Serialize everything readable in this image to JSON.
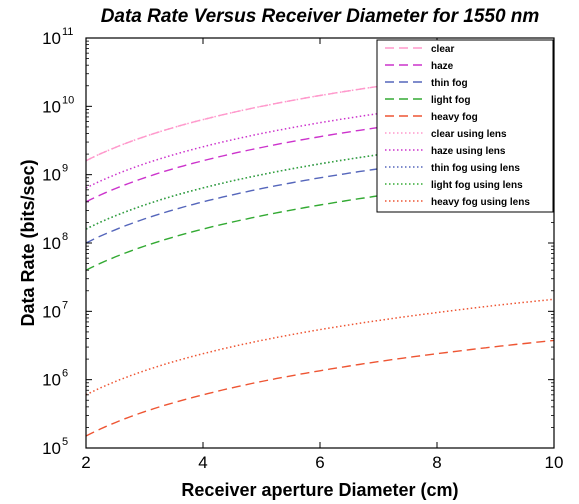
{
  "chart_data": {
    "type": "line",
    "title": "Data Rate Versus Receiver Diameter for 1550 nm",
    "xlabel": "Receiver aperture Diameter (cm)",
    "ylabel": "Data Rate (bits/sec)",
    "xlim": [
      2,
      10
    ],
    "ylim": [
      100000,
      100000000000
    ],
    "yscale": "log",
    "x_ticks": [
      "2",
      "4",
      "6",
      "8",
      "10"
    ],
    "y_ticks": [
      {
        "base": "10",
        "exp": "5",
        "value": 100000
      },
      {
        "base": "10",
        "exp": "6",
        "value": 1000000
      },
      {
        "base": "10",
        "exp": "7",
        "value": 10000000
      },
      {
        "base": "10",
        "exp": "8",
        "value": 100000000
      },
      {
        "base": "10",
        "exp": "9",
        "value": 1000000000
      },
      {
        "base": "10",
        "exp": "10",
        "value": 10000000000
      },
      {
        "base": "10",
        "exp": "11",
        "value": 100000000000
      }
    ],
    "legend_position": "top-right",
    "x": [
      2,
      3,
      4,
      5,
      6,
      7,
      8,
      9,
      10
    ],
    "series": [
      {
        "name": "clear",
        "color": "#ff99cc",
        "dash": "dashed",
        "values": [
          1600000000.0,
          3600000000.0,
          6400000000.0,
          10000000000.0,
          14400000000.0,
          19600000000.0,
          25600000000.0,
          32400000000.0,
          40000000000.0
        ]
      },
      {
        "name": "haze",
        "color": "#cc33cc",
        "dash": "dashed",
        "values": [
          400000000.0,
          900000000.0,
          1600000000.0,
          2500000000.0,
          3600000000.0,
          4900000000.0,
          6400000000.0,
          8100000000.0,
          10000000000.0
        ]
      },
      {
        "name": "thin fog",
        "color": "#5566bb",
        "dash": "dashed",
        "values": [
          100000000.0,
          225000000.0,
          400000000.0,
          625000000.0,
          900000000.0,
          1220000000.0,
          1600000000.0,
          2030000000.0,
          2500000000.0
        ]
      },
      {
        "name": "light fog",
        "color": "#33aa33",
        "dash": "dashed",
        "values": [
          40000000.0,
          90000000.0,
          160000000.0,
          250000000.0,
          360000000.0,
          490000000.0,
          640000000.0,
          810000000.0,
          1000000000.0
        ]
      },
      {
        "name": "heavy fog",
        "color": "#ee5533",
        "dash": "dashed",
        "values": [
          150000.0,
          340000.0,
          600000.0,
          940000.0,
          1350000.0,
          1840000.0,
          2400000.0,
          3040000.0,
          3750000.0
        ]
      },
      {
        "name": "clear using lens",
        "color": "#ff99cc",
        "dash": "dotted",
        "values": [
          1600000000.0,
          3600000000.0,
          6400000000.0,
          10000000000.0,
          14400000000.0,
          19600000000.0,
          25600000000.0,
          32400000000.0,
          40000000000.0
        ]
      },
      {
        "name": "haze using lens",
        "color": "#cc33cc",
        "dash": "dotted",
        "values": [
          640000000.0,
          1440000000.0,
          2560000000.0,
          4000000000.0,
          5760000000.0,
          7840000000.0,
          10200000000.0,
          13000000000.0,
          16000000000.0
        ]
      },
      {
        "name": "thin fog using lens",
        "color": "#5566bb",
        "dash": "dotted",
        "values": [
          160000000.0,
          360000000.0,
          640000000.0,
          1000000000.0,
          1440000000.0,
          1960000000.0,
          2560000000.0,
          3240000000.0,
          4000000000.0
        ]
      },
      {
        "name": "light fog using lens",
        "color": "#33aa33",
        "dash": "dotted",
        "values": [
          160000000.0,
          360000000.0,
          640000000.0,
          1000000000.0,
          1440000000.0,
          1960000000.0,
          2560000000.0,
          3240000000.0,
          4000000000.0
        ]
      },
      {
        "name": "heavy fog using lens",
        "color": "#ee5533",
        "dash": "dotted",
        "values": [
          600000.0,
          1350000.0,
          2400000.0,
          3750000.0,
          5400000.0,
          7350000.0,
          9600000.0,
          12200000.0,
          15000000.0
        ]
      }
    ]
  }
}
